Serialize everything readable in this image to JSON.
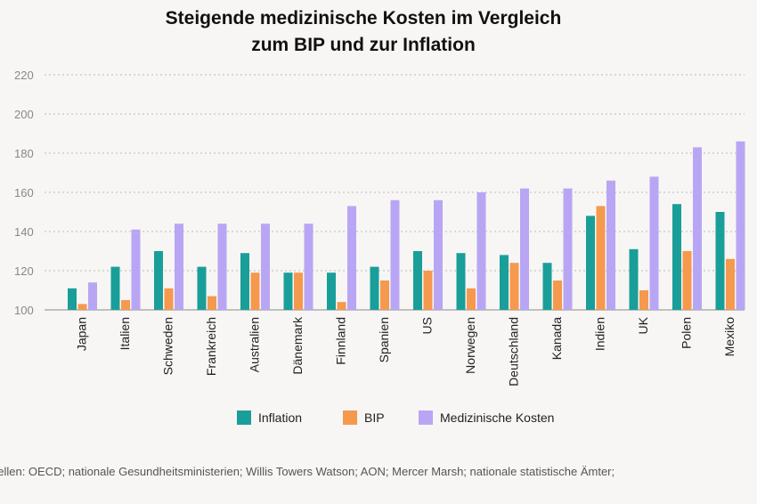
{
  "chart_data": {
    "type": "bar",
    "title_lines": [
      "Steigende medizinische Kosten im Vergleich",
      "zum BIP und zur Inflation"
    ],
    "categories": [
      "Japan",
      "Italien",
      "Schweden",
      "Frankreich",
      "Australien",
      "Dänemark",
      "Finnland",
      "Spanien",
      "US",
      "Norwegen",
      "Deutschland",
      "Kanada",
      "Indien",
      "UK",
      "Polen",
      "Mexiko"
    ],
    "series": [
      {
        "name": "Inflation",
        "color": "#1a9e99",
        "values": [
          111,
          122,
          130,
          122,
          129,
          119,
          119,
          122,
          130,
          129,
          128,
          124,
          148,
          131,
          154,
          150
        ]
      },
      {
        "name": "BIP",
        "color": "#f5994e",
        "values": [
          103,
          105,
          111,
          107,
          119,
          119,
          104,
          115,
          120,
          111,
          124,
          115,
          153,
          110,
          130,
          126
        ]
      },
      {
        "name": "Medizinische Kosten",
        "color": "#b8a6f4",
        "values": [
          114,
          141,
          144,
          144,
          144,
          144,
          153,
          156,
          156,
          160,
          162,
          162,
          166,
          168,
          183,
          186
        ]
      }
    ],
    "yticks": [
      100,
      120,
      140,
      160,
      180,
      200,
      220
    ],
    "ylim": [
      100,
      220
    ],
    "grid": true,
    "legend_position": "bottom"
  },
  "source": "uellen: OECD; nationale Gesundheitsministerien; Willis Towers Watson; AON; Mercer Marsh; nationale statistische Ämter;"
}
